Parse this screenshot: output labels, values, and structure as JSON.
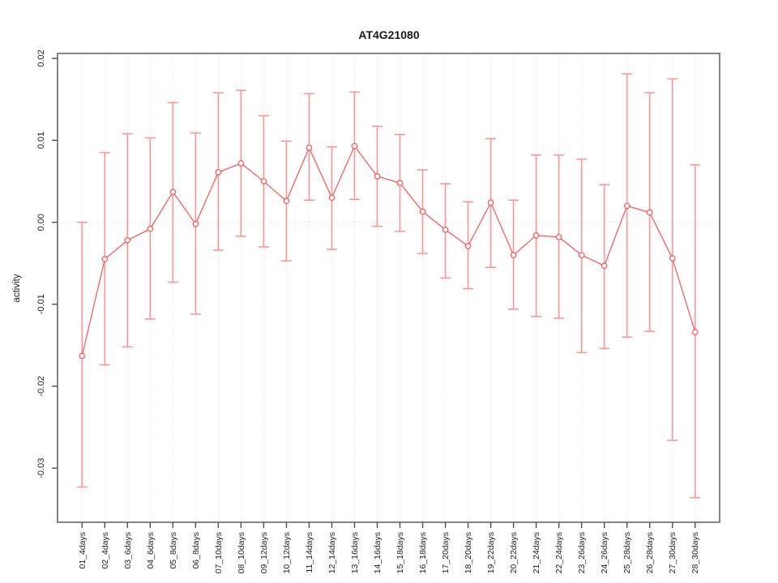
{
  "window": {
    "background": "#ffffff"
  },
  "colors": {
    "line": "#ff5050",
    "marker_stroke": "#ff5050",
    "marker_fill": "#ffffff",
    "errorbar": "#ff9494",
    "grid": "#dcdcdc",
    "frame": "#858585",
    "tick": "#4d4d4d",
    "text": "#1a1a1a"
  },
  "chart_data": {
    "type": "line",
    "title": "AT4G21080",
    "xlabel": "",
    "ylabel": "activity",
    "legend_position": "none",
    "marker": "open-circle",
    "grid": "vertical dotted line at every category; horizontal dotted line at y=0",
    "categories": [
      "01_4days",
      "02_4days",
      "03_6days",
      "04_6days",
      "05_8days",
      "06_8days",
      "07_10days",
      "08_10days",
      "09_12days",
      "10_12days",
      "11_14days",
      "12_14days",
      "13_16days",
      "14_16days",
      "15_18days",
      "16_18days",
      "17_20days",
      "18_20days",
      "19_22days",
      "20_22days",
      "21_24days",
      "22_24days",
      "23_26days",
      "24_26days",
      "25_28days",
      "26_28days",
      "27_30days",
      "28_30days"
    ],
    "series": [
      {
        "name": "activity_mean",
        "values": [
          -0.0163,
          -0.0045,
          -0.0022,
          -0.0008,
          0.0037,
          -0.0002,
          0.0061,
          0.0072,
          0.005,
          0.0026,
          0.0091,
          0.003,
          0.0093,
          0.0056,
          0.0048,
          0.0013,
          -0.0009,
          -0.0029,
          0.0024,
          -0.004,
          -0.0016,
          -0.0018,
          -0.004,
          -0.0053,
          0.002,
          0.0012,
          -0.0044,
          -0.0134
        ]
      },
      {
        "name": "errorbar_upper",
        "values": [
          0.0,
          0.0085,
          0.0108,
          0.0103,
          0.0146,
          0.0109,
          0.0158,
          0.0161,
          0.013,
          0.0099,
          0.0157,
          0.0092,
          0.0159,
          0.0117,
          0.0107,
          0.0064,
          0.0047,
          0.0025,
          0.0102,
          0.0027,
          0.0082,
          0.0082,
          0.0077,
          0.0046,
          0.0181,
          0.0158,
          0.0175,
          0.007
        ]
      },
      {
        "name": "errorbar_lower",
        "values": [
          -0.0323,
          -0.0174,
          -0.0152,
          -0.0118,
          -0.0073,
          -0.0112,
          -0.0034,
          -0.0017,
          -0.003,
          -0.0047,
          0.0027,
          -0.0033,
          0.0028,
          -0.0005,
          -0.0011,
          -0.0038,
          -0.0068,
          -0.0081,
          -0.0055,
          -0.0106,
          -0.0115,
          -0.0117,
          -0.0159,
          -0.0154,
          -0.014,
          -0.0133,
          -0.0266,
          -0.0336
        ]
      }
    ],
    "ylim": [
      -0.0366,
      0.0206
    ],
    "yticks": {
      "values": [
        0.02,
        0.01,
        0.0,
        -0.01,
        -0.02,
        -0.03
      ],
      "labels": [
        "0.02",
        "0.01",
        "0.00",
        "-0.01",
        "-0.02",
        "-0.03"
      ]
    }
  }
}
